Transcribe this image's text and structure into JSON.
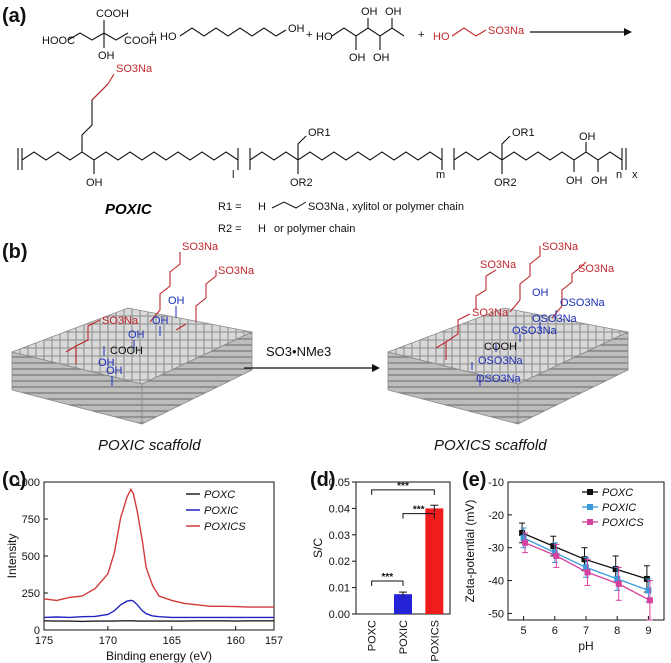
{
  "panels": {
    "a": {
      "label": "(a)",
      "reactants": {
        "citric_acid": {
          "cooh1": "HOOC",
          "cooh2": "COOH",
          "cooh3": "COOH",
          "oh": "OH"
        },
        "plus1": "+",
        "octanediol": {
          "left": "HO",
          "right": "OH"
        },
        "plus2": "+",
        "xylitol": {
          "ho": "HO",
          "oh1": "OH",
          "oh2": "OH",
          "oh3": "OH",
          "oh4": "OH"
        },
        "plus3": "+",
        "isethionate": {
          "ho": "HO",
          "so3na": "SO3Na"
        }
      },
      "polymer": {
        "so3na": "SO3Na",
        "oh_left": "OH",
        "or1_mid": "OR1",
        "or2_mid": "OR2",
        "or1_right": "OR1",
        "or2_right": "OR2",
        "oh_x1": "OH",
        "oh_x2": "OH",
        "oh_x3": "OH",
        "sub_l": "l",
        "sub_m": "m",
        "sub_n": "n",
        "sub_x": "x"
      },
      "name": "POXIC",
      "r1_def": {
        "label": "R1 =",
        "h": "H",
        "so3na": "SO3Na",
        "tail": ", xylitol or polymer chain"
      },
      "r2_def": {
        "label": "R2 =",
        "h": "H",
        "tail": "or polymer chain"
      }
    },
    "b": {
      "label": "(b)",
      "reagent": "SO3•NMe3",
      "left_scaffold": {
        "caption": "POXIC scaffold",
        "so3na_1": "SO3Na",
        "so3na_2": "SO3Na",
        "so3na_3": "SO3Na",
        "cooh": "COOH",
        "oh_1": "OH",
        "oh_2": "OH",
        "oh_3": "OH",
        "oh_4": "OH",
        "oh_5": "OH"
      },
      "right_scaffold": {
        "caption": "POXICS scaffold",
        "so3na_1": "SO3Na",
        "so3na_2": "SO3Na",
        "so3na_3": "SO3Na",
        "so3na_4": "SO3Na",
        "cooh": "COOH",
        "oh_1": "OH",
        "oso3na_1": "OSO3Na",
        "oso3na_2": "OSO3Na",
        "oso3na_3": "OSO3Na",
        "oso3na_4": "OSO3Na",
        "oso3na_5": "OSO3Na"
      }
    },
    "c": {
      "label": "(c)"
    },
    "d": {
      "label": "(d)"
    },
    "e": {
      "label": "(e)"
    }
  },
  "chart_data": [
    {
      "panel": "c",
      "type": "line",
      "xlabel": "Binding energy (eV)",
      "ylabel": "Intensity",
      "xlim": [
        175,
        157
      ],
      "ylim": [
        0,
        1000
      ],
      "xticks": [
        175,
        170,
        165,
        160,
        157
      ],
      "yticks": [
        0,
        250,
        500,
        750,
        1000
      ],
      "legend_position": "top-right",
      "x": [
        175,
        174,
        173,
        172,
        171,
        170,
        169.5,
        169,
        168.5,
        168.2,
        168,
        167.7,
        167.3,
        167,
        166.5,
        166,
        165,
        164,
        163,
        162,
        161,
        160,
        159,
        158,
        157
      ],
      "series": [
        {
          "name": "POXC",
          "color": "#222222",
          "values": [
            62,
            60,
            60,
            58,
            60,
            60,
            60,
            62,
            62,
            62,
            62,
            60,
            60,
            60,
            60,
            60,
            60,
            60,
            62,
            62,
            62,
            60,
            62,
            62,
            62
          ]
        },
        {
          "name": "POXIC",
          "color": "#2323c0",
          "values": [
            85,
            88,
            85,
            90,
            92,
            105,
            130,
            170,
            195,
            200,
            195,
            170,
            130,
            110,
            95,
            90,
            85,
            85,
            85,
            85,
            85,
            85,
            85,
            85,
            85
          ]
        },
        {
          "name": "POXICS",
          "color": "#d23a3a",
          "values": [
            210,
            200,
            220,
            230,
            280,
            380,
            520,
            760,
            900,
            950,
            920,
            800,
            600,
            420,
            300,
            230,
            200,
            180,
            170,
            160,
            160,
            158,
            155,
            155,
            155
          ]
        }
      ]
    },
    {
      "panel": "d",
      "type": "bar",
      "ylabel": "S/C",
      "ylim": [
        0,
        0.05
      ],
      "yticks": [
        0.0,
        0.01,
        0.02,
        0.03,
        0.04,
        0.05
      ],
      "ytick_labels": [
        "0.00",
        "0.01",
        "0.02",
        "0.03",
        "0.04",
        "0.05"
      ],
      "categories": [
        "POXC",
        "POXIC",
        "POXICS"
      ],
      "values": [
        0.0,
        0.0075,
        0.04
      ],
      "errors": [
        0.0,
        0.0008,
        0.0012
      ],
      "colors": [
        "#222222",
        "#2424d6",
        "#ee1c1c"
      ],
      "significance": [
        {
          "from": 0,
          "to": 2,
          "label": "***"
        },
        {
          "from": 1,
          "to": 2,
          "label": "***"
        },
        {
          "from": 0,
          "to": 1,
          "label": "***"
        }
      ]
    },
    {
      "panel": "e",
      "type": "line",
      "xlabel": "pH",
      "ylabel": "Zeta-potential (mV)",
      "xlim": [
        4.5,
        9.5
      ],
      "ylim": [
        -52,
        -10
      ],
      "xticks": [
        5,
        6,
        7,
        8,
        9
      ],
      "yticks": [
        -10,
        -20,
        -30,
        -40,
        -50
      ],
      "legend_position": "top-right",
      "x": [
        5,
        6,
        7,
        8,
        9
      ],
      "series": [
        {
          "name": "POXC",
          "color": "#111111",
          "marker": "square",
          "values": [
            -25.5,
            -29.5,
            -33.5,
            -36.5,
            -39.5
          ],
          "errors": [
            3,
            3,
            3.5,
            4,
            4
          ]
        },
        {
          "name": "POXIC",
          "color": "#3a9ad9",
          "marker": "square",
          "values": [
            -27,
            -31.5,
            -36,
            -39.5,
            -43
          ],
          "errors": [
            3,
            3,
            3,
            3.5,
            3.5
          ]
        },
        {
          "name": "POXICS",
          "color": "#d6409f",
          "marker": "square",
          "values": [
            -28.5,
            -32.5,
            -37.5,
            -41,
            -46
          ],
          "errors": [
            3,
            3.5,
            4,
            5,
            6
          ]
        }
      ]
    }
  ]
}
